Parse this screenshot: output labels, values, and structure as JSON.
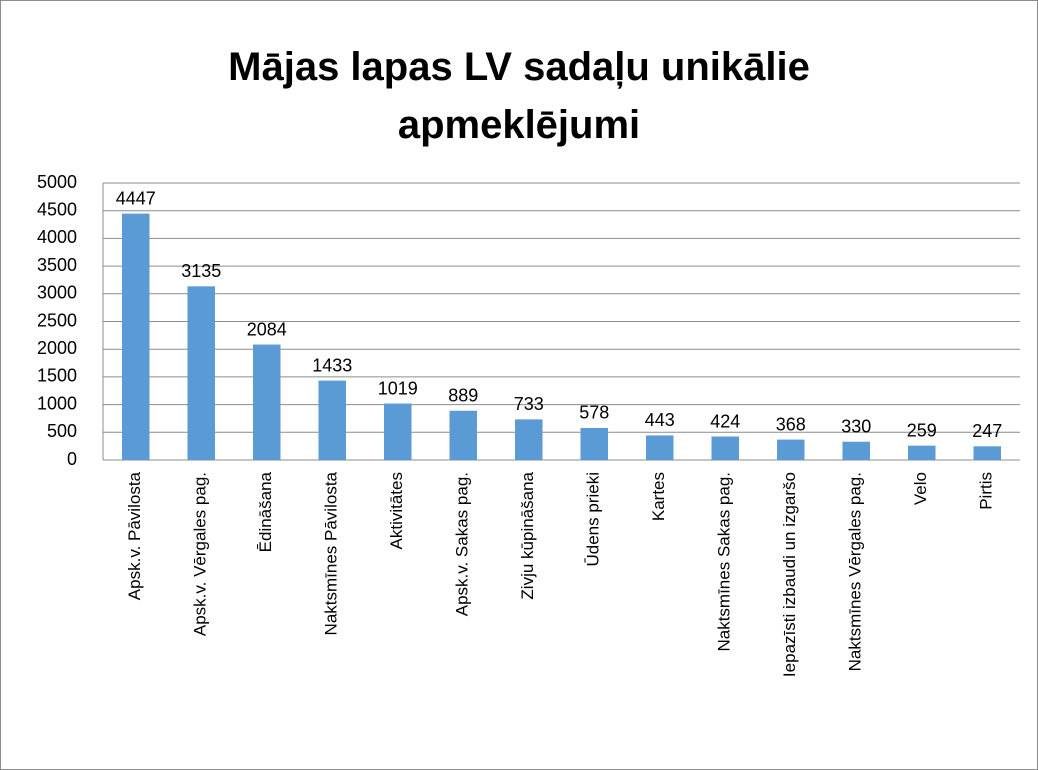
{
  "chart_data": {
    "type": "bar",
    "title": "Mājas lapas LV sadaļu unikālie apmeklējumi",
    "categories": [
      "Apsk.v. Pāvilosta",
      "Apsk.v. Vērgales pag.",
      "Ēdināšana",
      "Naktsmīnes Pāvilosta",
      "Aktivitātes",
      "Apsk.v. Sakas pag.",
      "Zivju kūpināšana",
      "Ūdens prieki",
      "Kartes",
      "Naktsmīnes Sakas pag.",
      "Iepazīsti izbaudi un izgaršo",
      "Naktsmīnes Vērgales pag.",
      "Velo",
      "Pirtis"
    ],
    "values": [
      4447,
      3135,
      2084,
      1433,
      1019,
      889,
      733,
      578,
      443,
      424,
      368,
      330,
      259,
      247
    ],
    "color": "#5b9bd5",
    "ylim": [
      0,
      5000
    ],
    "yticks": [
      0,
      500,
      1000,
      1500,
      2000,
      2500,
      3000,
      3500,
      4000,
      4500,
      5000
    ],
    "grid": true
  }
}
